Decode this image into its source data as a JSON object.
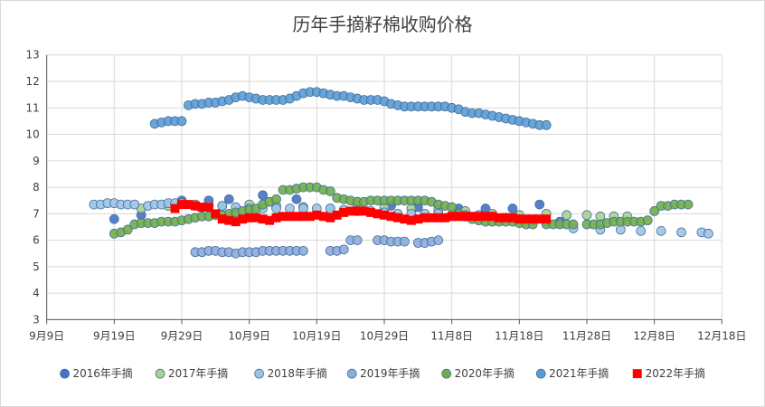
{
  "chart_data": {
    "type": "scatter",
    "title": "历年手摘籽棉收购价格",
    "xlabel": "",
    "ylabel": "",
    "x_axis": {
      "ticks": [
        "9月9日",
        "9月19日",
        "9月29日",
        "10月9日",
        "10月19日",
        "10月29日",
        "11月8日",
        "11月18日",
        "11月28日",
        "12月8日",
        "12月18日"
      ],
      "range_days": [
        0,
        100
      ],
      "tick_interval_days": 10
    },
    "y_axis": {
      "ticks": [
        "3",
        "4",
        "5",
        "6",
        "7",
        "8",
        "9",
        "10",
        "11",
        "12",
        "13"
      ],
      "range": [
        3,
        13
      ]
    },
    "grid": true,
    "legend_position": "bottom",
    "series": [
      {
        "name": "2016年手摘",
        "color": "#4472c4",
        "marker": "circle",
        "points": [
          [
            10,
            6.8
          ],
          [
            14,
            6.95
          ],
          [
            20,
            7.5
          ],
          [
            24,
            7.5
          ],
          [
            27,
            7.55
          ],
          [
            32,
            7.7
          ],
          [
            37,
            7.55
          ],
          [
            51,
            7.3
          ],
          [
            55,
            7.25
          ],
          [
            61,
            7.2
          ],
          [
            65,
            7.2
          ],
          [
            69,
            7.2
          ],
          [
            73,
            7.35
          ],
          [
            76,
            6.7
          ]
        ]
      },
      {
        "name": "2017年手摘",
        "color": "#a9d18e",
        "marker": "circle",
        "points": [
          [
            14,
            7.2
          ],
          [
            18,
            7.3
          ],
          [
            22,
            7.35
          ],
          [
            26,
            7.3
          ],
          [
            30,
            7.35
          ],
          [
            34,
            7.3
          ],
          [
            38,
            7.25
          ],
          [
            42,
            7.2
          ],
          [
            46,
            7.3
          ],
          [
            50,
            7.25
          ],
          [
            54,
            7.2
          ],
          [
            58,
            7.15
          ],
          [
            62,
            7.1
          ],
          [
            66,
            7.0
          ],
          [
            70,
            6.95
          ],
          [
            74,
            7.0
          ],
          [
            77,
            6.95
          ],
          [
            80,
            6.95
          ],
          [
            82,
            6.9
          ],
          [
            84,
            6.9
          ],
          [
            86,
            6.9
          ]
        ]
      },
      {
        "name": "2018年手摘",
        "color": "#9dc3e6",
        "marker": "circle",
        "points": [
          [
            7,
            7.35
          ],
          [
            8,
            7.35
          ],
          [
            9,
            7.4
          ],
          [
            10,
            7.4
          ],
          [
            11,
            7.35
          ],
          [
            12,
            7.35
          ],
          [
            13,
            7.35
          ],
          [
            15,
            7.3
          ],
          [
            16,
            7.35
          ],
          [
            17,
            7.35
          ],
          [
            18,
            7.4
          ],
          [
            19,
            7.4
          ],
          [
            20,
            7.4
          ],
          [
            22,
            7.3
          ],
          [
            24,
            7.3
          ],
          [
            26,
            7.3
          ],
          [
            28,
            7.25
          ],
          [
            30,
            7.2
          ],
          [
            32,
            7.2
          ],
          [
            34,
            7.2
          ],
          [
            36,
            7.2
          ],
          [
            38,
            7.2
          ],
          [
            40,
            7.2
          ],
          [
            42,
            7.2
          ],
          [
            44,
            7.15
          ],
          [
            46,
            7.1
          ],
          [
            48,
            7.1
          ],
          [
            50,
            7.05
          ],
          [
            52,
            7.0
          ],
          [
            54,
            7.0
          ],
          [
            56,
            7.0
          ],
          [
            58,
            7.0
          ],
          [
            60,
            6.95
          ],
          [
            62,
            6.95
          ],
          [
            64,
            6.95
          ],
          [
            66,
            6.9
          ],
          [
            68,
            6.85
          ],
          [
            70,
            6.8
          ],
          [
            72,
            6.75
          ],
          [
            74,
            6.7
          ],
          [
            76,
            6.65
          ],
          [
            78,
            6.45
          ],
          [
            82,
            6.4
          ],
          [
            85,
            6.4
          ],
          [
            88,
            6.35
          ],
          [
            91,
            6.35
          ],
          [
            94,
            6.3
          ],
          [
            97,
            6.3
          ],
          [
            98,
            6.25
          ]
        ]
      },
      {
        "name": "2019年手摘",
        "color": "#8faadc",
        "marker": "circle",
        "points": [
          [
            22,
            5.55
          ],
          [
            23,
            5.55
          ],
          [
            24,
            5.6
          ],
          [
            25,
            5.6
          ],
          [
            26,
            5.55
          ],
          [
            27,
            5.55
          ],
          [
            28,
            5.5
          ],
          [
            29,
            5.55
          ],
          [
            30,
            5.55
          ],
          [
            31,
            5.55
          ],
          [
            32,
            5.6
          ],
          [
            33,
            5.6
          ],
          [
            34,
            5.6
          ],
          [
            35,
            5.6
          ],
          [
            36,
            5.6
          ],
          [
            37,
            5.6
          ],
          [
            38,
            5.6
          ],
          [
            42,
            5.6
          ],
          [
            43,
            5.6
          ],
          [
            44,
            5.65
          ],
          [
            45,
            6.0
          ],
          [
            46,
            6.0
          ],
          [
            49,
            6.0
          ],
          [
            50,
            6.0
          ],
          [
            51,
            5.95
          ],
          [
            52,
            5.95
          ],
          [
            53,
            5.95
          ],
          [
            55,
            5.9
          ],
          [
            56,
            5.9
          ],
          [
            57,
            5.95
          ],
          [
            58,
            6.0
          ]
        ]
      },
      {
        "name": "2020年手摘",
        "color": "#70ad47",
        "marker": "circle",
        "points": [
          [
            10,
            6.25
          ],
          [
            11,
            6.3
          ],
          [
            12,
            6.4
          ],
          [
            13,
            6.6
          ],
          [
            14,
            6.65
          ],
          [
            15,
            6.65
          ],
          [
            16,
            6.65
          ],
          [
            17,
            6.7
          ],
          [
            18,
            6.7
          ],
          [
            19,
            6.7
          ],
          [
            20,
            6.75
          ],
          [
            21,
            6.8
          ],
          [
            22,
            6.85
          ],
          [
            23,
            6.9
          ],
          [
            24,
            6.9
          ],
          [
            25,
            6.95
          ],
          [
            26,
            6.95
          ],
          [
            27,
            7.0
          ],
          [
            28,
            7.05
          ],
          [
            29,
            7.1
          ],
          [
            30,
            7.15
          ],
          [
            31,
            7.2
          ],
          [
            32,
            7.35
          ],
          [
            33,
            7.45
          ],
          [
            34,
            7.55
          ],
          [
            35,
            7.9
          ],
          [
            36,
            7.9
          ],
          [
            37,
            7.95
          ],
          [
            38,
            8.0
          ],
          [
            39,
            8.0
          ],
          [
            40,
            8.0
          ],
          [
            41,
            7.9
          ],
          [
            42,
            7.85
          ],
          [
            43,
            7.6
          ],
          [
            44,
            7.55
          ],
          [
            45,
            7.5
          ],
          [
            46,
            7.45
          ],
          [
            47,
            7.45
          ],
          [
            48,
            7.5
          ],
          [
            49,
            7.5
          ],
          [
            50,
            7.5
          ],
          [
            51,
            7.5
          ],
          [
            52,
            7.5
          ],
          [
            53,
            7.5
          ],
          [
            54,
            7.5
          ],
          [
            55,
            7.5
          ],
          [
            56,
            7.5
          ],
          [
            57,
            7.45
          ],
          [
            58,
            7.35
          ],
          [
            59,
            7.3
          ],
          [
            60,
            7.25
          ],
          [
            61,
            7.0
          ],
          [
            62,
            6.9
          ],
          [
            63,
            6.8
          ],
          [
            64,
            6.75
          ],
          [
            65,
            6.7
          ],
          [
            66,
            6.7
          ],
          [
            67,
            6.7
          ],
          [
            68,
            6.7
          ],
          [
            69,
            6.7
          ],
          [
            70,
            6.65
          ],
          [
            71,
            6.6
          ],
          [
            72,
            6.6
          ],
          [
            74,
            6.6
          ],
          [
            75,
            6.6
          ],
          [
            76,
            6.6
          ],
          [
            77,
            6.6
          ],
          [
            78,
            6.6
          ],
          [
            80,
            6.6
          ],
          [
            81,
            6.6
          ],
          [
            82,
            6.6
          ],
          [
            83,
            6.65
          ],
          [
            84,
            6.7
          ],
          [
            85,
            6.7
          ],
          [
            86,
            6.7
          ],
          [
            87,
            6.7
          ],
          [
            88,
            6.7
          ],
          [
            89,
            6.75
          ],
          [
            90,
            7.1
          ],
          [
            91,
            7.3
          ],
          [
            92,
            7.3
          ],
          [
            93,
            7.35
          ],
          [
            94,
            7.35
          ],
          [
            95,
            7.35
          ]
        ]
      },
      {
        "name": "2021年手摘",
        "color": "#5b9bd5",
        "marker": "circle",
        "points": [
          [
            16,
            10.4
          ],
          [
            17,
            10.45
          ],
          [
            18,
            10.5
          ],
          [
            19,
            10.5
          ],
          [
            20,
            10.5
          ],
          [
            21,
            11.1
          ],
          [
            22,
            11.15
          ],
          [
            23,
            11.15
          ],
          [
            24,
            11.2
          ],
          [
            25,
            11.2
          ],
          [
            26,
            11.25
          ],
          [
            27,
            11.3
          ],
          [
            28,
            11.4
          ],
          [
            29,
            11.45
          ],
          [
            30,
            11.4
          ],
          [
            31,
            11.35
          ],
          [
            32,
            11.3
          ],
          [
            33,
            11.3
          ],
          [
            34,
            11.3
          ],
          [
            35,
            11.3
          ],
          [
            36,
            11.35
          ],
          [
            37,
            11.45
          ],
          [
            38,
            11.55
          ],
          [
            39,
            11.6
          ],
          [
            40,
            11.6
          ],
          [
            41,
            11.55
          ],
          [
            42,
            11.5
          ],
          [
            43,
            11.45
          ],
          [
            44,
            11.45
          ],
          [
            45,
            11.4
          ],
          [
            46,
            11.35
          ],
          [
            47,
            11.3
          ],
          [
            48,
            11.3
          ],
          [
            49,
            11.3
          ],
          [
            50,
            11.25
          ],
          [
            51,
            11.15
          ],
          [
            52,
            11.1
          ],
          [
            53,
            11.05
          ],
          [
            54,
            11.05
          ],
          [
            55,
            11.05
          ],
          [
            56,
            11.05
          ],
          [
            57,
            11.05
          ],
          [
            58,
            11.05
          ],
          [
            59,
            11.05
          ],
          [
            60,
            11.0
          ],
          [
            61,
            10.95
          ],
          [
            62,
            10.85
          ],
          [
            63,
            10.8
          ],
          [
            64,
            10.8
          ],
          [
            65,
            10.75
          ],
          [
            66,
            10.7
          ],
          [
            67,
            10.65
          ],
          [
            68,
            10.6
          ],
          [
            69,
            10.55
          ],
          [
            70,
            10.5
          ],
          [
            71,
            10.45
          ],
          [
            72,
            10.4
          ],
          [
            73,
            10.35
          ],
          [
            74,
            10.35
          ]
        ]
      },
      {
        "name": "2022年手摘",
        "color": "#ff0000",
        "marker": "square",
        "points": [
          [
            19,
            7.2
          ],
          [
            20,
            7.35
          ],
          [
            21,
            7.35
          ],
          [
            22,
            7.3
          ],
          [
            23,
            7.25
          ],
          [
            24,
            7.25
          ],
          [
            25,
            7.0
          ],
          [
            26,
            6.8
          ],
          [
            27,
            6.75
          ],
          [
            28,
            6.7
          ],
          [
            29,
            6.8
          ],
          [
            30,
            6.85
          ],
          [
            31,
            6.85
          ],
          [
            32,
            6.8
          ],
          [
            33,
            6.75
          ],
          [
            34,
            6.85
          ],
          [
            35,
            6.9
          ],
          [
            36,
            6.9
          ],
          [
            37,
            6.9
          ],
          [
            38,
            6.9
          ],
          [
            39,
            6.9
          ],
          [
            40,
            6.95
          ],
          [
            41,
            6.9
          ],
          [
            42,
            6.85
          ],
          [
            43,
            6.95
          ],
          [
            44,
            7.05
          ],
          [
            45,
            7.1
          ],
          [
            46,
            7.1
          ],
          [
            47,
            7.1
          ],
          [
            48,
            7.05
          ],
          [
            49,
            7.0
          ],
          [
            50,
            6.95
          ],
          [
            51,
            6.9
          ],
          [
            52,
            6.85
          ],
          [
            53,
            6.8
          ],
          [
            54,
            6.75
          ],
          [
            55,
            6.8
          ],
          [
            56,
            6.85
          ],
          [
            57,
            6.85
          ],
          [
            58,
            6.85
          ],
          [
            59,
            6.85
          ],
          [
            60,
            6.9
          ],
          [
            61,
            6.9
          ],
          [
            62,
            6.9
          ],
          [
            63,
            6.9
          ],
          [
            64,
            6.9
          ],
          [
            65,
            6.9
          ],
          [
            66,
            6.9
          ],
          [
            67,
            6.85
          ],
          [
            68,
            6.85
          ],
          [
            69,
            6.85
          ],
          [
            70,
            6.8
          ],
          [
            71,
            6.8
          ],
          [
            72,
            6.8
          ],
          [
            73,
            6.8
          ],
          [
            74,
            6.8
          ]
        ]
      }
    ]
  }
}
